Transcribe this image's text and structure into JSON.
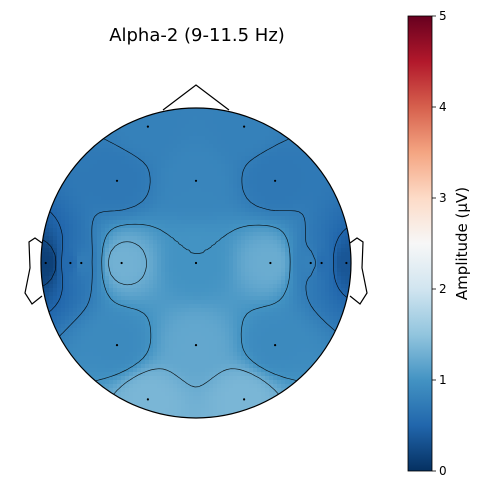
{
  "chart_data": {
    "type": "heatmap",
    "subtype": "eeg-scalp-topography",
    "title": "Alpha-2 (9-11.5 Hz)",
    "colormap": "RdBu_r",
    "colorbar": {
      "label": "Amplitude (μV)",
      "range": [
        0,
        5
      ],
      "ticks": [
        0,
        1,
        2,
        3,
        4,
        5
      ],
      "tick_labels": [
        "0",
        "1",
        "2",
        "3",
        "4",
        "5"
      ],
      "stops": [
        {
          "value": 0.0,
          "color": "#053061"
        },
        {
          "value": 0.5,
          "color": "#2166ac"
        },
        {
          "value": 1.0,
          "color": "#4393c3"
        },
        {
          "value": 1.5,
          "color": "#92c5de"
        },
        {
          "value": 2.0,
          "color": "#d1e5f0"
        },
        {
          "value": 2.5,
          "color": "#f7f7f7"
        },
        {
          "value": 3.0,
          "color": "#fddbc7"
        },
        {
          "value": 3.5,
          "color": "#f4a582"
        },
        {
          "value": 4.0,
          "color": "#d6604d"
        },
        {
          "value": 4.5,
          "color": "#b2182b"
        },
        {
          "value": 5.0,
          "color": "#67001f"
        }
      ]
    },
    "electrodes": [
      {
        "x": -0.31,
        "y": 0.88,
        "value": 0.8
      },
      {
        "x": 0.31,
        "y": 0.88,
        "value": 0.8
      },
      {
        "x": -0.51,
        "y": 0.53,
        "value": 0.7
      },
      {
        "x": 0.0,
        "y": 0.53,
        "value": 0.85
      },
      {
        "x": 0.51,
        "y": 0.53,
        "value": 0.7
      },
      {
        "x": -0.97,
        "y": 0.0,
        "value": 0.15
      },
      {
        "x": -0.81,
        "y": 0.0,
        "value": 0.55
      },
      {
        "x": -0.74,
        "y": 0.0,
        "value": 0.75
      },
      {
        "x": -0.48,
        "y": 0.0,
        "value": 1.3
      },
      {
        "x": 0.0,
        "y": 0.0,
        "value": 1.0
      },
      {
        "x": 0.48,
        "y": 0.0,
        "value": 1.25
      },
      {
        "x": 0.74,
        "y": 0.0,
        "value": 0.8
      },
      {
        "x": 0.81,
        "y": 0.0,
        "value": 0.6
      },
      {
        "x": 0.97,
        "y": 0.0,
        "value": 0.35
      },
      {
        "x": -0.51,
        "y": -0.53,
        "value": 0.9
      },
      {
        "x": 0.0,
        "y": -0.53,
        "value": 1.2
      },
      {
        "x": 0.51,
        "y": -0.53,
        "value": 0.9
      },
      {
        "x": -0.31,
        "y": -0.88,
        "value": 1.35
      },
      {
        "x": 0.31,
        "y": -0.88,
        "value": 1.35
      }
    ],
    "contour_levels": [
      0.25,
      0.5,
      0.75,
      1.0,
      1.25
    ]
  }
}
